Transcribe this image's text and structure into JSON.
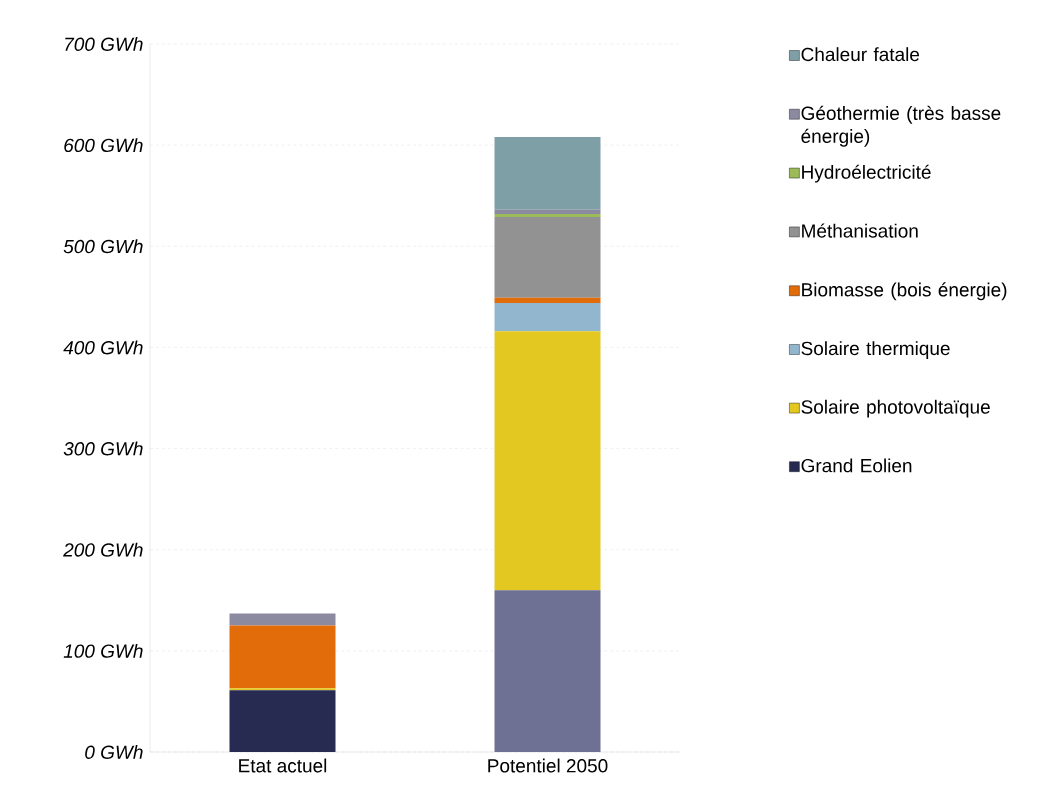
{
  "chart_data": {
    "type": "bar",
    "stacked": true,
    "categories": [
      "Etat actuel",
      "Potentiel 2050"
    ],
    "series": [
      {
        "name": "Grand Eolien",
        "color": "#272b52",
        "colors": [
          "#272b52",
          "#6e7194"
        ],
        "values": [
          61,
          160
        ]
      },
      {
        "name": "Solaire photovoltaïque",
        "color": "#e3c822",
        "values": [
          2,
          256
        ]
      },
      {
        "name": "Solaire thermique",
        "color": "#93b6cf",
        "values": [
          0,
          28
        ]
      },
      {
        "name": "Biomasse (bois énergie)",
        "color": "#e36c0a",
        "values": [
          62,
          5
        ]
      },
      {
        "name": "Méthanisation",
        "color": "#929292",
        "values": [
          0,
          80
        ]
      },
      {
        "name": "Hydroélectricité",
        "color": "#9bbb59",
        "values": [
          0,
          3
        ]
      },
      {
        "name": "Géothermie (très basse énergie)",
        "color": "#8b8aa0",
        "values": [
          12,
          4
        ]
      },
      {
        "name": "Chaleur fatale",
        "color": "#7f9fa6",
        "values": [
          0,
          72
        ]
      }
    ],
    "ylim": [
      0,
      700
    ],
    "yticks": [
      {
        "value": 0,
        "label": "0 GWh"
      },
      {
        "value": 100,
        "label": "100 GWh"
      },
      {
        "value": 200,
        "label": "200 GWh"
      },
      {
        "value": 300,
        "label": "300 GWh"
      },
      {
        "value": 400,
        "label": "400 GWh"
      },
      {
        "value": 500,
        "label": "500 GWh"
      },
      {
        "value": 600,
        "label": "600 GWh"
      },
      {
        "value": 700,
        "label": "700 GWh"
      }
    ],
    "grid": "y",
    "legend": "right"
  }
}
